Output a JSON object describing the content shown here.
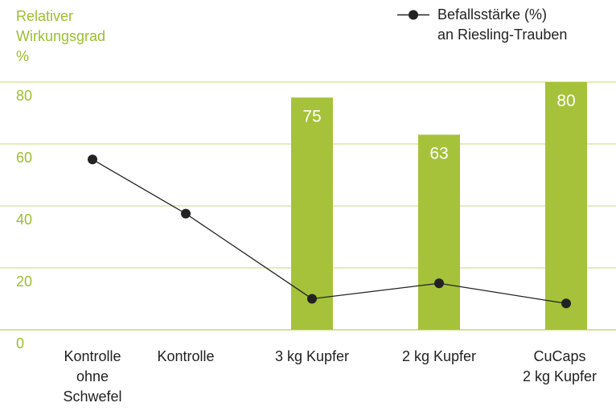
{
  "chart_data": {
    "type": "bar",
    "ylabel": "Relativer\nWirkungsgrad\n%",
    "ylim": [
      0,
      80
    ],
    "yticks": [
      "80",
      "60",
      "40",
      "20",
      "0"
    ],
    "grid": true,
    "categories": [
      "Kontrolle\nohne\nSchwefel",
      "Kontrolle",
      "3 kg Kupfer",
      "2 kg Kupfer",
      "CuCaps\n2 kg Kupfer"
    ],
    "bars": {
      "values": [
        null,
        null,
        75,
        63,
        80
      ],
      "labels": [
        "",
        "",
        "75",
        "63",
        "80"
      ],
      "color": "#a5c23a"
    },
    "line_series": {
      "name": "Befallsstärke (%)\nan Riesling-Trauben",
      "values": [
        55,
        37.5,
        10,
        15,
        8.5
      ],
      "color": "#222222"
    },
    "legend_position": "top-right",
    "colors": {
      "axis_text": "#9cbd2f",
      "grid": "#c8d87a",
      "bar_label": "#ffffff"
    }
  }
}
